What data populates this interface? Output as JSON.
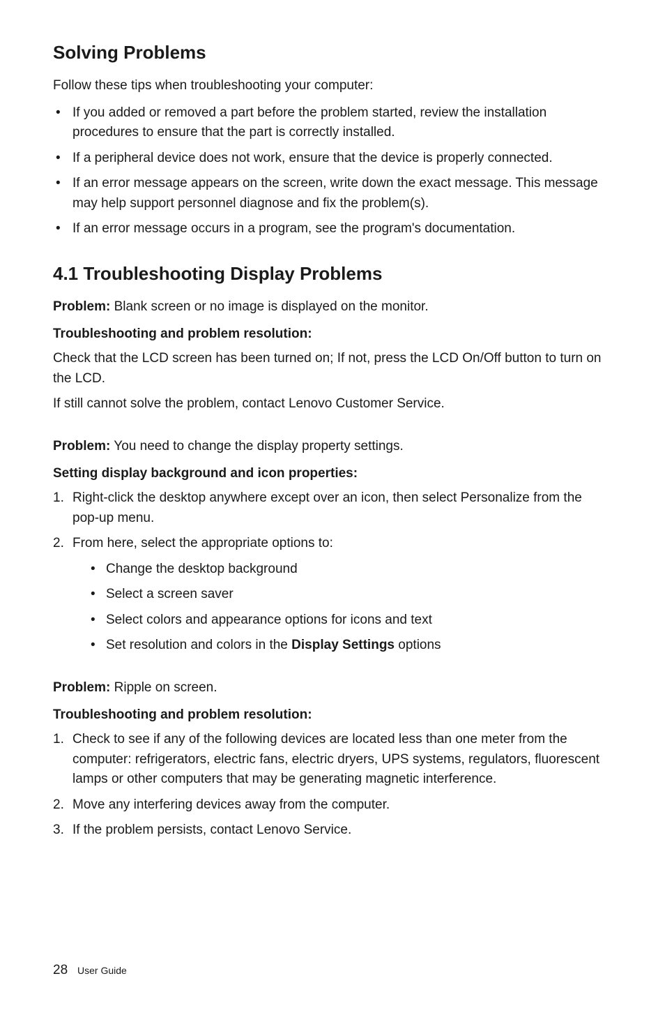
{
  "heading1": "Solving Problems",
  "intro1": "Follow these tips when troubleshooting your computer:",
  "tips": [
    "If you added or removed a part before the problem started, review the installation procedures to ensure that the part is correctly installed.",
    "If a peripheral device does not work, ensure that the device is properly connected.",
    "If an error message appears on the screen, write down the exact message. This message may help support personnel diagnose and fix the problem(s).",
    "If an error message occurs in a program, see the program's documentation."
  ],
  "heading2": "4.1 Troubleshooting Display Problems",
  "problemLabel": "Problem:",
  "problem1": " Blank screen or no image is displayed on the monitor.",
  "sub1": "Troubleshooting and problem resolution:",
  "body1a": "Check that the LCD screen has been turned on; If not, press the LCD On/Off button to turn on the LCD.",
  "body1b": "If still cannot solve the problem, contact Lenovo Customer Service.",
  "problem2": " You need to change the display property settings.",
  "sub2": "Setting display background and icon properties:",
  "steps2": [
    "Right-click the desktop anywhere except over an icon, then select Personalize from the pop-up menu.",
    "From here, select the appropriate options to:"
  ],
  "steps2nested": [
    "Change the desktop background",
    "Select a screen saver",
    "Select colors and appearance options for icons and text"
  ],
  "steps2nested_last_pre": "Set resolution and colors in the ",
  "steps2nested_last_bold": "Display Settings",
  "steps2nested_last_post": " options",
  "problem3": " Ripple on screen.",
  "sub3": "Troubleshooting and problem resolution:",
  "steps3": [
    "Check to see if any of the following devices are located less than one meter from the computer: refrigerators, electric fans, electric dryers, UPS systems, regulators, fluorescent lamps or other computers that may be generating magnetic interference.",
    "Move any interfering devices away from the computer.",
    "If the problem persists, contact Lenovo Service."
  ],
  "footer": {
    "pageNum": "28",
    "docTitle": "User Guide"
  }
}
